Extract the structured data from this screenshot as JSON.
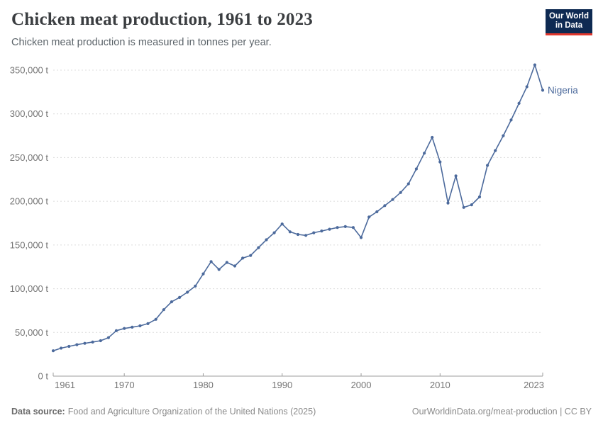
{
  "header": {
    "title": "Chicken meat production, 1961 to 2023",
    "subtitle": "Chicken meat production is measured in tonnes per year."
  },
  "logo": {
    "line1": "Our World",
    "line2": "in Data"
  },
  "colors": {
    "series_line": "#4c6a9c",
    "logo_navy": "#0e2a52",
    "logo_red": "#e0362c",
    "gridline": "#dcdcdc",
    "axis": "#9c9c9c",
    "tick_text": "#757575"
  },
  "chart_data": {
    "type": "line",
    "title": "Chicken meat production, 1961 to 2023",
    "subtitle": "Chicken meat production is measured in tonnes per year.",
    "unit": "t",
    "xlabel": "",
    "ylabel": "tonnes",
    "xlim": [
      1961,
      2023
    ],
    "ylim": [
      0,
      350000
    ],
    "grid": true,
    "legend_position": "line-end-label",
    "x_ticks": [
      1961,
      1970,
      1980,
      1990,
      2000,
      2010,
      2023
    ],
    "y_ticks": [
      0,
      50000,
      100000,
      150000,
      200000,
      250000,
      300000,
      350000
    ],
    "series": [
      {
        "name": "Nigeria",
        "color": "#4c6a9c",
        "x": [
          1961,
          1962,
          1963,
          1964,
          1965,
          1966,
          1967,
          1968,
          1969,
          1970,
          1971,
          1972,
          1973,
          1974,
          1975,
          1976,
          1977,
          1978,
          1979,
          1980,
          1981,
          1982,
          1983,
          1984,
          1985,
          1986,
          1987,
          1988,
          1989,
          1990,
          1991,
          1992,
          1993,
          1994,
          1995,
          1996,
          1997,
          1998,
          1999,
          2000,
          2001,
          2002,
          2003,
          2004,
          2005,
          2006,
          2007,
          2008,
          2009,
          2010,
          2011,
          2012,
          2013,
          2014,
          2015,
          2016,
          2017,
          2018,
          2019,
          2020,
          2021,
          2022,
          2023
        ],
        "values": [
          29000,
          32000,
          34000,
          36000,
          37500,
          39000,
          40500,
          44000,
          52000,
          54500,
          56000,
          57500,
          60000,
          65000,
          76000,
          85000,
          90000,
          96000,
          103000,
          117000,
          131000,
          122000,
          130000,
          126000,
          135000,
          138000,
          147000,
          156000,
          164000,
          174000,
          165000,
          162000,
          161000,
          164000,
          166000,
          168000,
          170000,
          171000,
          170000,
          158500,
          182000,
          188000,
          195000,
          202000,
          210000,
          220000,
          237000,
          255000,
          273000,
          245000,
          198000,
          229000,
          193000,
          196000,
          205000,
          241000,
          258000,
          275000,
          293000,
          312000,
          331000,
          356000,
          327000
        ]
      }
    ]
  },
  "footer": {
    "datasource_label": "Data source:",
    "datasource_text": "Food and Agriculture Organization of the United Nations (2025)",
    "credit_text": "OurWorldinData.org/meat-production | CC BY"
  }
}
